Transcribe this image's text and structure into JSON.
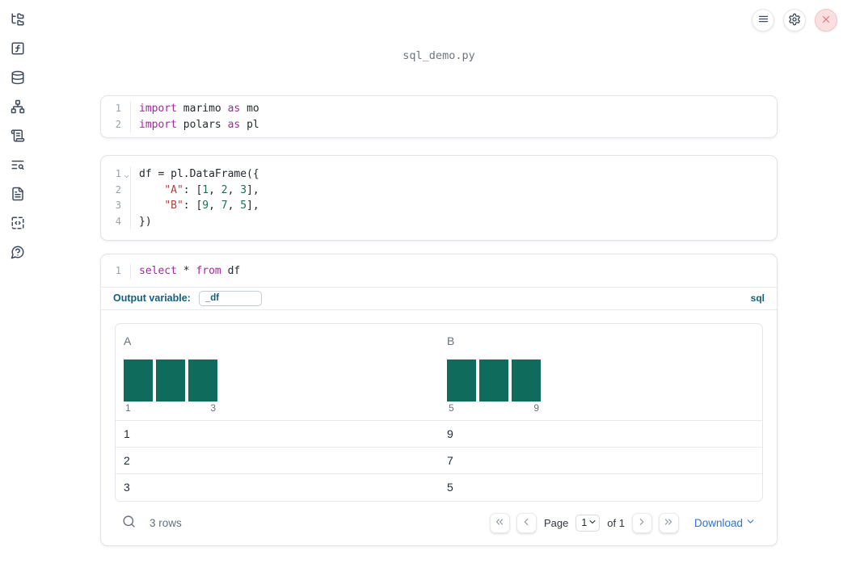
{
  "title": "sql_demo.py",
  "colors": {
    "keyword": "#a626a4",
    "string": "#b0413c",
    "number": "#177154",
    "plain": "#24292f",
    "bar": "#0f6b5c",
    "accent": "#15607f",
    "link": "#2d72d9"
  },
  "sidebar_icons": [
    "file-tree",
    "functions",
    "datasources",
    "dependency-graph",
    "logs",
    "outline",
    "documentation",
    "snippets",
    "help"
  ],
  "topbar_icons": [
    "menu",
    "settings",
    "close"
  ],
  "cells": [
    {
      "id": "imports",
      "lines": [
        {
          "num": "1",
          "tokens": [
            [
              "keyword",
              "import"
            ],
            [
              "plain",
              " marimo "
            ],
            [
              "keyword",
              "as"
            ],
            [
              "plain",
              " mo"
            ]
          ]
        },
        {
          "num": "2",
          "tokens": [
            [
              "keyword",
              "import"
            ],
            [
              "plain",
              " polars "
            ],
            [
              "keyword",
              "as"
            ],
            [
              "plain",
              " pl"
            ]
          ]
        }
      ]
    },
    {
      "id": "dataframe",
      "lines": [
        {
          "num": "1",
          "fold": true,
          "tokens": [
            [
              "plain",
              "df = pl.DataFrame({"
            ]
          ]
        },
        {
          "num": "2",
          "tokens": [
            [
              "plain",
              "    "
            ],
            [
              "string",
              "\"A\""
            ],
            [
              "plain",
              ": ["
            ],
            [
              "number",
              "1"
            ],
            [
              "plain",
              ", "
            ],
            [
              "number",
              "2"
            ],
            [
              "plain",
              ", "
            ],
            [
              "number",
              "3"
            ],
            [
              "plain",
              "],"
            ]
          ]
        },
        {
          "num": "3",
          "tokens": [
            [
              "plain",
              "    "
            ],
            [
              "string",
              "\"B\""
            ],
            [
              "plain",
              ": ["
            ],
            [
              "number",
              "9"
            ],
            [
              "plain",
              ", "
            ],
            [
              "number",
              "7"
            ],
            [
              "plain",
              ", "
            ],
            [
              "number",
              "5"
            ],
            [
              "plain",
              "],"
            ]
          ]
        },
        {
          "num": "4",
          "tokens": [
            [
              "plain",
              "})"
            ]
          ]
        }
      ]
    },
    {
      "id": "sql",
      "lines": [
        {
          "num": "1",
          "tokens": [
            [
              "keyword",
              "select"
            ],
            [
              "plain",
              " * "
            ],
            [
              "keyword",
              "from"
            ],
            [
              "plain",
              " df"
            ]
          ]
        }
      ],
      "output_variable_label": "Output variable:",
      "output_variable_value": "_df",
      "language_badge": "sql"
    }
  ],
  "table": {
    "columns": [
      {
        "name": "A",
        "hist_bars": [
          1,
          1,
          1
        ],
        "hist_labels": [
          "1",
          "3"
        ]
      },
      {
        "name": "B",
        "hist_bars": [
          1,
          1,
          1
        ],
        "hist_labels": [
          "5",
          "9"
        ]
      }
    ],
    "rows": [
      [
        "1",
        "9"
      ],
      [
        "2",
        "7"
      ],
      [
        "3",
        "5"
      ]
    ],
    "footer": {
      "row_count": "3 rows",
      "page_label": "Page",
      "page_value": "1",
      "of_label": "of 1",
      "download_label": "Download"
    }
  },
  "chart_data": [
    {
      "type": "bar",
      "title": "column A histogram",
      "categories": [
        "1",
        "2",
        "3"
      ],
      "values": [
        1,
        1,
        1
      ],
      "x_axis_ticks": [
        "1",
        "3"
      ]
    },
    {
      "type": "bar",
      "title": "column B histogram",
      "categories": [
        "5",
        "7",
        "9"
      ],
      "values": [
        1,
        1,
        1
      ],
      "x_axis_ticks": [
        "5",
        "9"
      ]
    }
  ]
}
